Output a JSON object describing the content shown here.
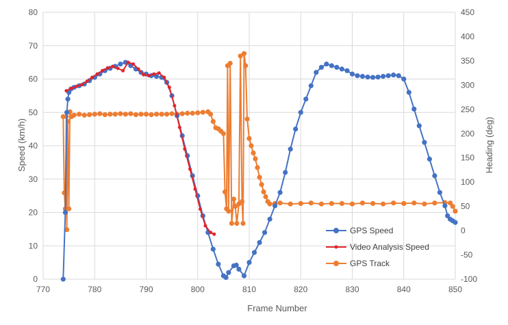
{
  "chart_data": {
    "type": "line",
    "xlabel": "Frame Number",
    "ylabel_left": "Speed (km/h)",
    "ylabel_right": "Heading (deg)",
    "xlim": [
      770,
      850
    ],
    "ylim_left": [
      0,
      80
    ],
    "ylim_right": [
      -100,
      450
    ],
    "x_ticks": [
      "770",
      "780",
      "790",
      "800",
      "810",
      "820",
      "830",
      "840",
      "850"
    ],
    "y_left_ticks": [
      "0",
      "10",
      "20",
      "30",
      "40",
      "50",
      "60",
      "70",
      "80"
    ],
    "y_right_ticks": [
      "-100",
      "-50",
      "0",
      "50",
      "100",
      "150",
      "200",
      "250",
      "300",
      "350",
      "400",
      "450"
    ],
    "grid": true,
    "legend_position": "bottom-right",
    "series": [
      {
        "name": "GPS Speed",
        "axis": "left",
        "color": "#4472C4",
        "x": [
          773.9,
          774.3,
          774.6,
          774.8,
          775.0,
          775.4,
          776,
          777,
          778,
          779,
          780,
          781,
          782,
          783,
          784,
          785,
          786,
          787,
          788,
          789,
          790,
          791,
          792,
          793,
          794,
          795,
          796,
          797,
          798,
          799,
          800,
          801,
          802,
          803,
          804,
          805,
          805.5,
          806,
          807,
          807.5,
          808,
          809,
          810,
          811,
          812,
          813,
          814,
          815,
          816,
          817,
          818,
          819,
          820,
          821,
          822,
          823,
          824,
          825,
          826,
          827,
          828,
          829,
          830,
          831,
          832,
          833,
          834,
          835,
          836,
          837,
          838,
          839,
          840,
          841,
          842,
          843,
          844,
          845,
          846,
          847,
          848,
          848.5,
          849,
          849.5,
          850
        ],
        "values": [
          0,
          20,
          50,
          54,
          56,
          57,
          57.5,
          58,
          58.5,
          59.5,
          60.5,
          61.5,
          62.5,
          63.2,
          63.8,
          64.5,
          65,
          64,
          63,
          62,
          61.5,
          61,
          60.8,
          60.5,
          59,
          55,
          49,
          43,
          37,
          31,
          25,
          19,
          14,
          9,
          4.5,
          1,
          0.5,
          2,
          4,
          4.2,
          3,
          1,
          5,
          8,
          11,
          14,
          18,
          22,
          26,
          32,
          39,
          45,
          50,
          54,
          58,
          62,
          63.5,
          64.5,
          64,
          63.5,
          63,
          62.5,
          61.5,
          61,
          60.8,
          60.6,
          60.5,
          60.6,
          60.8,
          61,
          61.2,
          61,
          60,
          56,
          51,
          46,
          41,
          36,
          31,
          26,
          22,
          19,
          18,
          17.5,
          17
        ]
      },
      {
        "name": "Video Analysis Speed",
        "axis": "left",
        "color": "#E0252B",
        "x": [
          774.5,
          775.5,
          776.5,
          777.5,
          778.5,
          779.5,
          780.5,
          781.5,
          782.5,
          783.5,
          784.5,
          785.5,
          786.5,
          787.5,
          788.5,
          789.5,
          790.5,
          791.5,
          792.5,
          793.5,
          794.5,
          795.5,
          796.5,
          797.5,
          798.5,
          799.5,
          800.5,
          801.5,
          802.5,
          803.2
        ],
        "values": [
          56.5,
          57.2,
          57.8,
          58.3,
          59.3,
          60.5,
          61.5,
          62.5,
          63.3,
          63.8,
          63.2,
          62.5,
          65,
          64.5,
          63,
          61.3,
          61,
          61.5,
          61.8,
          60.5,
          57.5,
          52,
          45.5,
          39,
          33,
          27,
          21,
          16,
          14,
          13.5
        ]
      },
      {
        "name": "GPS Track",
        "axis": "right",
        "color": "#ED7D31",
        "x": [
          773.9,
          774.1,
          774.3,
          774.5,
          774.6,
          774.8,
          775.0,
          775.2,
          775.5,
          776,
          777,
          778,
          779,
          780,
          781,
          782,
          783,
          784,
          785,
          786,
          787,
          788,
          789,
          790,
          791,
          792,
          793,
          794,
          795,
          796,
          797,
          798,
          799,
          800,
          801,
          802,
          802.5,
          803,
          803.5,
          804,
          804.5,
          805,
          805.3,
          805.6,
          805.8,
          806,
          806.3,
          806.6,
          807,
          807.3,
          807.6,
          808,
          808.3,
          808.6,
          808.8,
          809,
          809.3,
          809.6,
          810,
          810.4,
          810.8,
          811.2,
          811.6,
          812,
          812.4,
          812.8,
          813.2,
          813.6,
          814,
          815,
          816,
          818,
          820,
          822,
          824,
          826,
          828,
          830,
          832,
          834,
          836,
          838,
          840,
          842,
          844,
          846,
          848,
          849,
          849.5,
          850
        ],
        "values": [
          235,
          78,
          45,
          235,
          2,
          225,
          45,
          245,
          235,
          238,
          240,
          238,
          239,
          240,
          241,
          239,
          240,
          240,
          241,
          240,
          241,
          239,
          240,
          240,
          239,
          240,
          240,
          240,
          241,
          240,
          241,
          242,
          242,
          243,
          244,
          245,
          240,
          225,
          212,
          210,
          205,
          200,
          80,
          45,
          340,
          40,
          345,
          15,
          65,
          50,
          15,
          55,
          360,
          60,
          15,
          365,
          340,
          230,
          190,
          175,
          160,
          148,
          130,
          110,
          95,
          80,
          70,
          60,
          55,
          56,
          57,
          55,
          56,
          57,
          55,
          56,
          56,
          55,
          57,
          56,
          55,
          57,
          56,
          57,
          55,
          57,
          58,
          57,
          50,
          40
        ]
      }
    ]
  }
}
